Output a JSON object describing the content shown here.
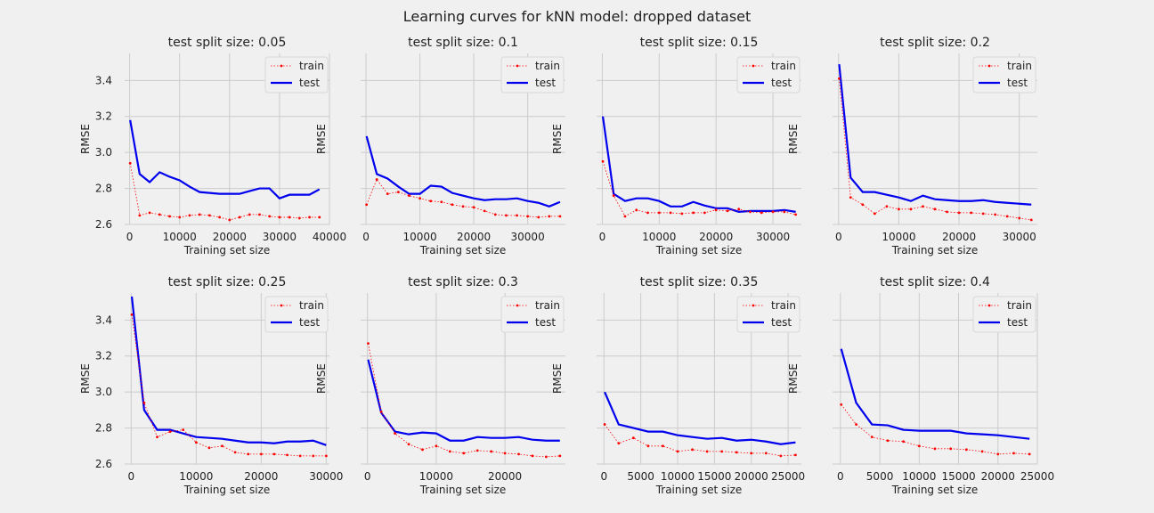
{
  "figure": {
    "title": "Learning curves for kNN model: dropped dataset",
    "background": "#f0f0f0",
    "grid_color": "#cbcbcb",
    "train_color": "#ff0000",
    "test_color": "#0000ee"
  },
  "chart_data": [
    {
      "type": "line",
      "title": "test split size: 0.05",
      "xlabel": "Training set size",
      "ylabel": "RMSE",
      "xlim": [
        -1000,
        40000
      ],
      "ylim": [
        2.6,
        3.55
      ],
      "xticks": [
        0,
        10000,
        20000,
        30000,
        40000
      ],
      "xtick_labels": [
        "0",
        "10000",
        "20000",
        "30000",
        "40000"
      ],
      "yticks": [
        2.6,
        2.8,
        3.0,
        3.2,
        3.4
      ],
      "ytick_labels": [
        "2.6",
        "2.8",
        "3.0",
        "3.2",
        "3.4"
      ],
      "legend": "top-right",
      "x": [
        100,
        2000,
        4000,
        6000,
        8000,
        10000,
        12000,
        14000,
        16000,
        18000,
        20000,
        22000,
        24000,
        26000,
        28000,
        30000,
        32000,
        34000,
        36000,
        38000
      ],
      "series": [
        {
          "name": "train",
          "values": [
            2.94,
            2.65,
            2.665,
            2.655,
            2.645,
            2.64,
            2.65,
            2.655,
            2.65,
            2.64,
            2.625,
            2.64,
            2.655,
            2.655,
            2.645,
            2.64,
            2.64,
            2.635,
            2.64,
            2.64
          ]
        },
        {
          "name": "test",
          "values": [
            3.18,
            2.88,
            2.835,
            2.89,
            2.865,
            2.845,
            2.81,
            2.78,
            2.775,
            2.77,
            2.77,
            2.77,
            2.785,
            2.8,
            2.8,
            2.745,
            2.765,
            2.765,
            2.765,
            2.795
          ]
        }
      ]
    },
    {
      "type": "line",
      "title": "test split size: 0.1",
      "xlabel": "Training set size",
      "ylabel": "RMSE",
      "xlim": [
        -1000,
        37000
      ],
      "ylim": [
        2.6,
        3.55
      ],
      "xticks": [
        0,
        10000,
        20000,
        30000
      ],
      "xtick_labels": [
        "0",
        "10000",
        "20000",
        "30000"
      ],
      "yticks": [
        2.6,
        2.8,
        3.0,
        3.2,
        3.4
      ],
      "ytick_labels": [],
      "legend": "top-right",
      "x": [
        100,
        2000,
        4000,
        6000,
        8000,
        10000,
        12000,
        14000,
        16000,
        18000,
        20000,
        22000,
        24000,
        26000,
        28000,
        30000,
        32000,
        34000,
        36000
      ],
      "series": [
        {
          "name": "train",
          "values": [
            2.71,
            2.85,
            2.77,
            2.78,
            2.76,
            2.745,
            2.73,
            2.725,
            2.71,
            2.7,
            2.695,
            2.675,
            2.655,
            2.65,
            2.65,
            2.645,
            2.64,
            2.645,
            2.645
          ]
        },
        {
          "name": "test",
          "values": [
            3.09,
            2.88,
            2.855,
            2.81,
            2.77,
            2.77,
            2.815,
            2.81,
            2.775,
            2.76,
            2.745,
            2.735,
            2.74,
            2.74,
            2.745,
            2.73,
            2.72,
            2.7,
            2.725
          ]
        }
      ]
    },
    {
      "type": "line",
      "title": "test split size: 0.15",
      "xlabel": "Training set size",
      "ylabel": "RMSE",
      "xlim": [
        -1000,
        35000
      ],
      "ylim": [
        2.6,
        3.55
      ],
      "xticks": [
        0,
        10000,
        20000,
        30000
      ],
      "xtick_labels": [
        "0",
        "10000",
        "20000",
        "30000"
      ],
      "yticks": [
        2.6,
        2.8,
        3.0,
        3.2,
        3.4
      ],
      "ytick_labels": [],
      "legend": "top-right",
      "x": [
        100,
        2000,
        4000,
        6000,
        8000,
        10000,
        12000,
        14000,
        16000,
        18000,
        20000,
        22000,
        24000,
        26000,
        28000,
        30000,
        32000,
        34000
      ],
      "series": [
        {
          "name": "train",
          "values": [
            2.95,
            2.76,
            2.645,
            2.68,
            2.665,
            2.665,
            2.665,
            2.66,
            2.665,
            2.665,
            2.68,
            2.675,
            2.685,
            2.67,
            2.665,
            2.67,
            2.67,
            2.655
          ]
        },
        {
          "name": "test",
          "values": [
            3.2,
            2.77,
            2.73,
            2.745,
            2.745,
            2.73,
            2.7,
            2.7,
            2.725,
            2.705,
            2.69,
            2.69,
            2.67,
            2.675,
            2.675,
            2.675,
            2.68,
            2.67
          ]
        }
      ]
    },
    {
      "type": "line",
      "title": "test split size: 0.2",
      "xlabel": "Training set size",
      "ylabel": "RMSE",
      "xlim": [
        -1000,
        33000
      ],
      "ylim": [
        2.6,
        3.55
      ],
      "xticks": [
        0,
        10000,
        20000,
        30000
      ],
      "xtick_labels": [
        "0",
        "10000",
        "20000",
        "30000"
      ],
      "yticks": [
        2.6,
        2.8,
        3.0,
        3.2,
        3.4
      ],
      "ytick_labels": [],
      "legend": "top-right",
      "x": [
        100,
        2000,
        4000,
        6000,
        8000,
        10000,
        12000,
        14000,
        16000,
        18000,
        20000,
        22000,
        24000,
        26000,
        28000,
        30000,
        32000
      ],
      "series": [
        {
          "name": "train",
          "values": [
            3.41,
            2.75,
            2.71,
            2.66,
            2.7,
            2.685,
            2.685,
            2.7,
            2.685,
            2.67,
            2.665,
            2.665,
            2.66,
            2.655,
            2.645,
            2.635,
            2.625
          ]
        },
        {
          "name": "test",
          "values": [
            3.49,
            2.86,
            2.78,
            2.78,
            2.765,
            2.75,
            2.73,
            2.76,
            2.74,
            2.735,
            2.73,
            2.73,
            2.735,
            2.725,
            2.72,
            2.715,
            2.71
          ]
        }
      ]
    },
    {
      "type": "line",
      "title": "test split size: 0.25",
      "xlabel": "Training set size",
      "ylabel": "RMSE",
      "xlim": [
        -1000,
        30500
      ],
      "ylim": [
        2.6,
        3.55
      ],
      "xticks": [
        0,
        10000,
        20000,
        30000
      ],
      "xtick_labels": [
        "0",
        "10000",
        "20000",
        "30000"
      ],
      "yticks": [
        2.6,
        2.8,
        3.0,
        3.2,
        3.4
      ],
      "ytick_labels": [
        "2.6",
        "2.8",
        "3.0",
        "3.2",
        "3.4"
      ],
      "legend": "top-right",
      "x": [
        100,
        2000,
        4000,
        6000,
        8000,
        10000,
        12000,
        14000,
        16000,
        18000,
        20000,
        22000,
        24000,
        26000,
        28000,
        30000
      ],
      "series": [
        {
          "name": "train",
          "values": [
            3.43,
            2.94,
            2.75,
            2.78,
            2.79,
            2.72,
            2.69,
            2.7,
            2.665,
            2.655,
            2.655,
            2.655,
            2.65,
            2.645,
            2.645,
            2.645
          ]
        },
        {
          "name": "test",
          "values": [
            3.53,
            2.9,
            2.79,
            2.79,
            2.77,
            2.75,
            2.745,
            2.74,
            2.73,
            2.72,
            2.72,
            2.715,
            2.725,
            2.725,
            2.73,
            2.705
          ]
        }
      ]
    },
    {
      "type": "line",
      "title": "test split size: 0.3",
      "xlabel": "Training set size",
      "ylabel": "RMSE",
      "xlim": [
        -1000,
        28800
      ],
      "ylim": [
        2.6,
        3.55
      ],
      "xticks": [
        0,
        10000,
        20000
      ],
      "xtick_labels": [
        "0",
        "10000",
        "20000"
      ],
      "yticks": [
        2.6,
        2.8,
        3.0,
        3.2,
        3.4
      ],
      "ytick_labels": [],
      "legend": "top-right",
      "x": [
        100,
        2000,
        4000,
        6000,
        8000,
        10000,
        12000,
        14000,
        16000,
        18000,
        20000,
        22000,
        24000,
        26000,
        28000
      ],
      "series": [
        {
          "name": "train",
          "values": [
            3.27,
            2.89,
            2.77,
            2.71,
            2.68,
            2.7,
            2.67,
            2.66,
            2.675,
            2.67,
            2.66,
            2.655,
            2.645,
            2.64,
            2.645
          ]
        },
        {
          "name": "test",
          "values": [
            3.18,
            2.885,
            2.78,
            2.765,
            2.775,
            2.77,
            2.73,
            2.73,
            2.75,
            2.745,
            2.745,
            2.75,
            2.735,
            2.73,
            2.73
          ]
        }
      ]
    },
    {
      "type": "line",
      "title": "test split size: 0.35",
      "xlabel": "Training set size",
      "ylabel": "RMSE",
      "xlim": [
        -1000,
        26800
      ],
      "ylim": [
        2.6,
        3.55
      ],
      "xticks": [
        0,
        5000,
        10000,
        15000,
        20000,
        25000
      ],
      "xtick_labels": [
        "0",
        "5000",
        "10000",
        "15000",
        "20000",
        "25000"
      ],
      "yticks": [
        2.6,
        2.8,
        3.0,
        3.2,
        3.4
      ],
      "ytick_labels": [],
      "legend": "top-right",
      "x": [
        100,
        2000,
        4000,
        6000,
        8000,
        10000,
        12000,
        14000,
        16000,
        18000,
        20000,
        22000,
        24000,
        26000
      ],
      "series": [
        {
          "name": "train",
          "values": [
            2.82,
            2.715,
            2.745,
            2.7,
            2.7,
            2.67,
            2.68,
            2.67,
            2.67,
            2.665,
            2.66,
            2.66,
            2.645,
            2.65
          ]
        },
        {
          "name": "test",
          "values": [
            3.0,
            2.82,
            2.8,
            2.78,
            2.78,
            2.76,
            2.75,
            2.74,
            2.745,
            2.73,
            2.735,
            2.725,
            2.71,
            2.72
          ]
        }
      ]
    },
    {
      "type": "line",
      "title": "test split size: 0.4",
      "xlabel": "Training set size",
      "ylabel": "RMSE",
      "xlim": [
        -1000,
        25000
      ],
      "ylim": [
        2.6,
        3.55
      ],
      "xticks": [
        0,
        5000,
        10000,
        15000,
        20000,
        25000
      ],
      "xtick_labels": [
        "0",
        "5000",
        "10000",
        "15000",
        "20000",
        "25000"
      ],
      "yticks": [
        2.6,
        2.8,
        3.0,
        3.2,
        3.4
      ],
      "ytick_labels": [],
      "legend": "top-right",
      "x": [
        100,
        2000,
        4000,
        6000,
        8000,
        10000,
        12000,
        14000,
        16000,
        18000,
        20000,
        22000,
        24000
      ],
      "series": [
        {
          "name": "train",
          "values": [
            2.93,
            2.82,
            2.75,
            2.73,
            2.725,
            2.7,
            2.685,
            2.685,
            2.68,
            2.67,
            2.655,
            2.66,
            2.655
          ]
        },
        {
          "name": "test",
          "values": [
            3.24,
            2.94,
            2.82,
            2.815,
            2.79,
            2.785,
            2.785,
            2.785,
            2.77,
            2.765,
            2.76,
            2.75,
            2.74
          ]
        }
      ]
    }
  ]
}
